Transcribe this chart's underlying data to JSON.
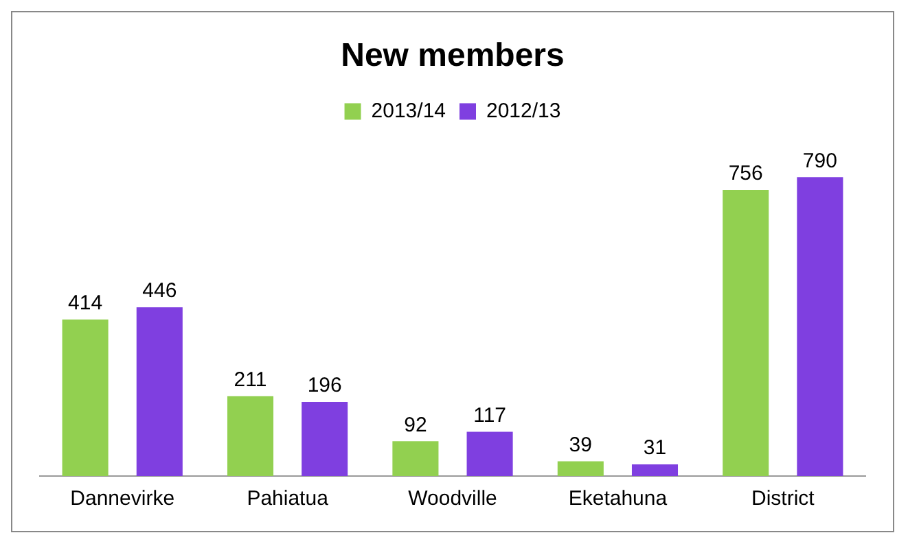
{
  "chart_data": {
    "type": "bar",
    "title": "New members",
    "categories": [
      "Dannevirke",
      "Pahiatua",
      "Woodville",
      "Eketahuna",
      "District"
    ],
    "series": [
      {
        "name": "2013/14",
        "color": "#92d050",
        "values": [
          414,
          211,
          92,
          39,
          756
        ]
      },
      {
        "name": "2012/13",
        "color": "#7f3fe0",
        "values": [
          446,
          196,
          117,
          31,
          790
        ]
      }
    ],
    "data_labels": true,
    "legend": "top",
    "grid": false,
    "tick_labels": "x"
  }
}
